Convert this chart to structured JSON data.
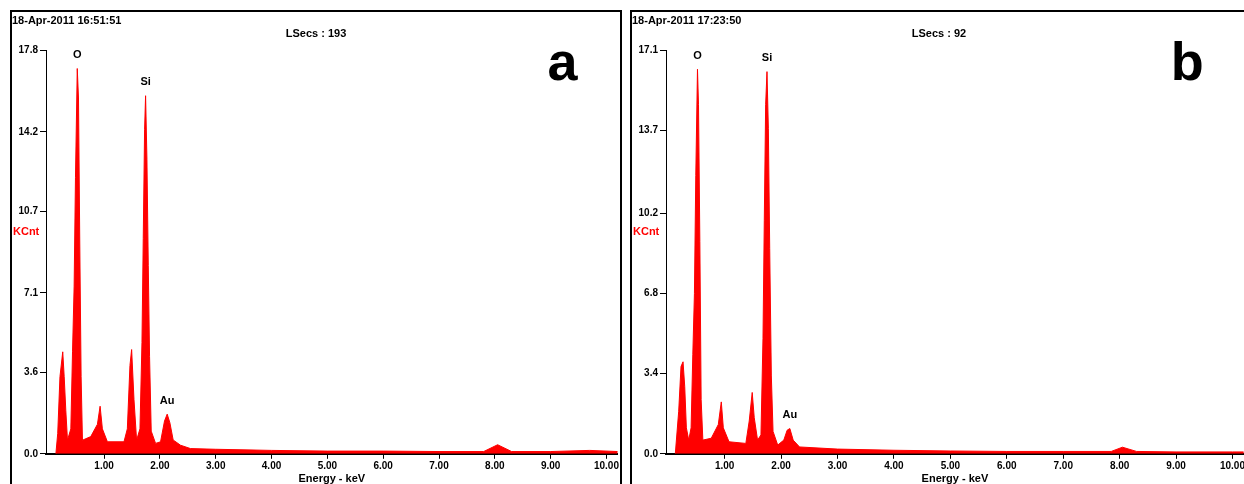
{
  "chart_data": [
    {
      "type": "area",
      "title": "18-Apr-2011 16:51:51",
      "subtitle": "LSecs : 193",
      "xlabel": "Energy - keV",
      "ylabel": "KCnt",
      "color": "#ff0000",
      "x": [
        0.137,
        0.17,
        0.21,
        0.26,
        0.286,
        0.315,
        0.345,
        0.405,
        0.435,
        0.464,
        0.488,
        0.52,
        0.542,
        0.565,
        0.589,
        0.613,
        0.762,
        0.881,
        0.929,
        0.97,
        1.06,
        1.357,
        1.417,
        1.464,
        1.494,
        1.536,
        1.583,
        1.643,
        1.679,
        1.702,
        1.726,
        1.744,
        1.768,
        1.792,
        1.815,
        1.845,
        1.923,
        2.012,
        2.083,
        2.131,
        2.179,
        2.238,
        2.369,
        2.548,
        3.0,
        4.0,
        5.0,
        6.0,
        7.0,
        7.8,
        8.05,
        8.3,
        9.0,
        9.7,
        10.2
      ],
      "values": [
        0,
        0.9,
        3.4,
        4.5,
        3.4,
        1.9,
        0.6,
        1.1,
        4.5,
        7.4,
        12.2,
        17.0,
        15.7,
        9.3,
        3.4,
        0.6,
        0.76,
        1.3,
        2.1,
        1.1,
        0.53,
        0.53,
        1.1,
        3.9,
        4.6,
        2.4,
        0.6,
        1.1,
        4.9,
        9.5,
        14.3,
        15.8,
        13.0,
        8.3,
        4.3,
        1.0,
        0.46,
        0.53,
        1.45,
        1.75,
        1.37,
        0.61,
        0.38,
        0.23,
        0.2,
        0.15,
        0.12,
        0.12,
        0.1,
        0.1,
        0.4,
        0.1,
        0.1,
        0.15,
        0.1
      ],
      "xlim": [
        -0.04,
        10.2
      ],
      "xticks": [
        {
          "value": 1,
          "label": "1.00"
        },
        {
          "value": 2,
          "label": "2.00"
        },
        {
          "value": 3,
          "label": "3.00"
        },
        {
          "value": 4,
          "label": "4.00"
        },
        {
          "value": 5,
          "label": "5.00"
        },
        {
          "value": 6,
          "label": "6.00"
        },
        {
          "value": 7,
          "label": "7.00"
        },
        {
          "value": 8,
          "label": "8.00"
        },
        {
          "value": 9,
          "label": "9.00"
        },
        {
          "value": 10,
          "label": "10.00"
        }
      ],
      "ylim": [
        0,
        17.8
      ],
      "yticks": [
        {
          "value": 0,
          "label": "0.0"
        },
        3.6,
        7.1,
        10.7,
        14.2,
        17.8
      ],
      "annotations": [
        "a",
        {
          "text": "O",
          "x": 0.52,
          "y": 17.0
        },
        {
          "text": "Si",
          "x": 1.744,
          "y": 15.8
        },
        {
          "text": "Au",
          "x": 2.131,
          "y": 1.75
        }
      ],
      "grid": false,
      "legend": false
    },
    {
      "type": "area",
      "title": "18-Apr-2011 17:23:50",
      "subtitle": "LSecs : 92",
      "xlabel": "Energy - keV",
      "ylabel": "KCnt",
      "color": "#ff0000",
      "x": [
        0.125,
        0.185,
        0.226,
        0.262,
        0.292,
        0.321,
        0.363,
        0.405,
        0.435,
        0.464,
        0.488,
        0.518,
        0.536,
        0.56,
        0.583,
        0.613,
        0.762,
        0.887,
        0.94,
        0.976,
        1.077,
        1.375,
        1.435,
        1.488,
        1.524,
        1.583,
        1.643,
        1.679,
        1.702,
        1.726,
        1.75,
        1.774,
        1.798,
        1.827,
        1.857,
        1.94,
        2.048,
        2.107,
        2.155,
        2.214,
        2.327,
        3.0,
        4.0,
        5.0,
        6.0,
        7.0,
        7.85,
        8.05,
        8.3,
        9.0,
        10.0,
        10.2
      ],
      "values": [
        0,
        1.8,
        3.7,
        3.9,
        2.85,
        1.1,
        0.58,
        1.1,
        4.2,
        6.8,
        11.8,
        16.3,
        14.8,
        9.0,
        2.3,
        0.58,
        0.66,
        1.24,
        2.2,
        1.1,
        0.51,
        0.44,
        1.39,
        2.6,
        1.53,
        0.58,
        0.8,
        4.9,
        9.9,
        14.8,
        16.2,
        13.8,
        8.7,
        3.3,
        0.95,
        0.37,
        0.58,
        1.0,
        1.07,
        0.58,
        0.29,
        0.2,
        0.15,
        0.12,
        0.1,
        0.1,
        0.1,
        0.28,
        0.1,
        0.08,
        0.08,
        0.08
      ],
      "xlim": [
        -0.04,
        10.2
      ],
      "xticks": [
        {
          "value": 1,
          "label": "1.00"
        },
        {
          "value": 2,
          "label": "2.00"
        },
        {
          "value": 3,
          "label": "3.00"
        },
        {
          "value": 4,
          "label": "4.00"
        },
        {
          "value": 5,
          "label": "5.00"
        },
        {
          "value": 6,
          "label": "6.00"
        },
        {
          "value": 7,
          "label": "7.00"
        },
        {
          "value": 8,
          "label": "8.00"
        },
        {
          "value": 9,
          "label": "9.00"
        },
        {
          "value": 10,
          "label": "10.00"
        }
      ],
      "ylim": [
        0,
        17.1
      ],
      "yticks": [
        {
          "value": 0,
          "label": "0.0"
        },
        3.4,
        6.8,
        10.2,
        13.7,
        17.1
      ],
      "annotations": [
        "b",
        {
          "text": "O",
          "x": 0.518,
          "y": 16.3
        },
        {
          "text": "Si",
          "x": 1.75,
          "y": 16.2
        },
        {
          "text": "Au",
          "x": 2.155,
          "y": 1.07
        }
      ],
      "grid": false,
      "legend": false
    }
  ]
}
